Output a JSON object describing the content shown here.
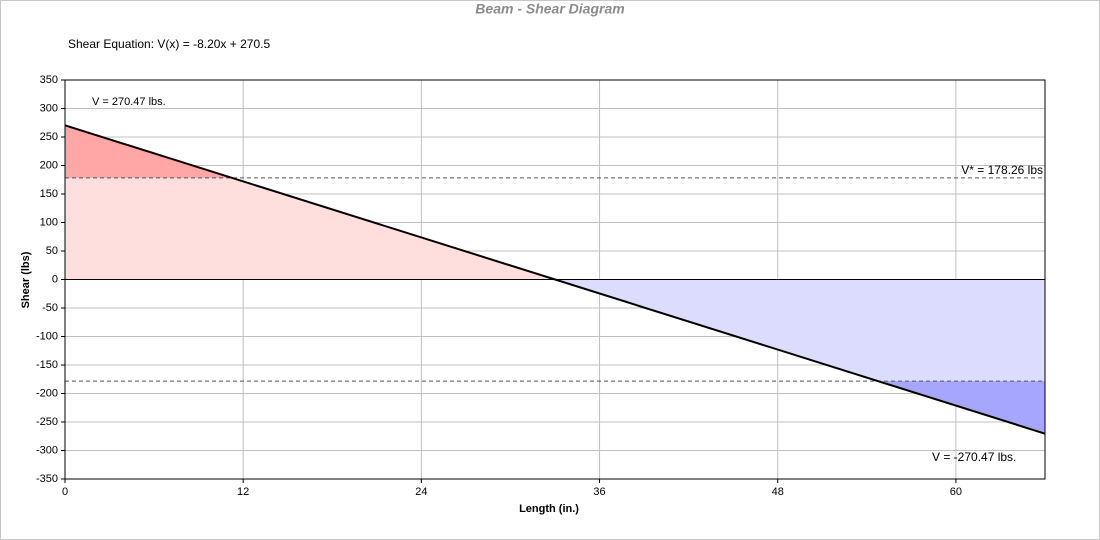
{
  "chart_data": {
    "type": "line",
    "title": "Beam - Shear Diagram",
    "annotations": [
      "Shear Equation:  V(x) = -8.20x + 270.5",
      "V = 270.47 lbs.",
      "V* = 178.26 lbs",
      "V = -270.47 lbs."
    ],
    "xlabel": "Length (in.)",
    "ylabel": "Shear (lbs)",
    "x": [
      0,
      66
    ],
    "series": [
      {
        "color": "#000000",
        "values": [
          270.47,
          -270.47
        ]
      }
    ],
    "thresholds": [
      178.26,
      -178.26
    ],
    "fill_colors": {
      "positive": "#ffdede",
      "positive_over": "#ffa6a6",
      "negative": "#dcdcff",
      "negative_over": "#a6a6ff"
    },
    "xlim": [
      0,
      66
    ],
    "xticks": [
      0,
      12,
      24,
      36,
      48,
      60
    ],
    "ylim": [
      -350,
      350
    ],
    "yticks": [
      -350,
      -300,
      -250,
      -200,
      -150,
      -100,
      -50,
      0,
      50,
      100,
      150,
      200,
      250,
      300,
      350
    ],
    "grid": true
  }
}
